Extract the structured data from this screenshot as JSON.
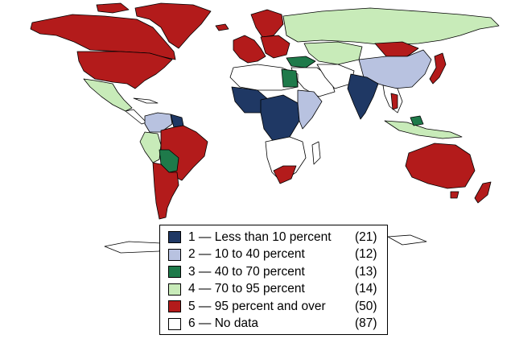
{
  "map": {
    "colors": {
      "class_1": "#1f3864",
      "class_2": "#b8c2e0",
      "class_3": "#1e7a4a",
      "class_4": "#c8ebb9",
      "class_5": "#b31b1b",
      "class_6": "#ffffff"
    },
    "legend": [
      {
        "label": "1 — Less than 10 percent",
        "count": "(21)",
        "color": "#1f3864"
      },
      {
        "label": "2 — 10 to 40 percent",
        "count": "(12)",
        "color": "#b8c2e0"
      },
      {
        "label": "3 — 40 to 70 percent",
        "count": "(13)",
        "color": "#1e7a4a"
      },
      {
        "label": "4 — 70 to 95 percent",
        "count": "(14)",
        "color": "#c8ebb9"
      },
      {
        "label": "5 — 95 percent and over",
        "count": "(50)",
        "color": "#b31b1b"
      },
      {
        "label": "6 — No data",
        "count": "(87)",
        "color": "#ffffff"
      }
    ]
  }
}
